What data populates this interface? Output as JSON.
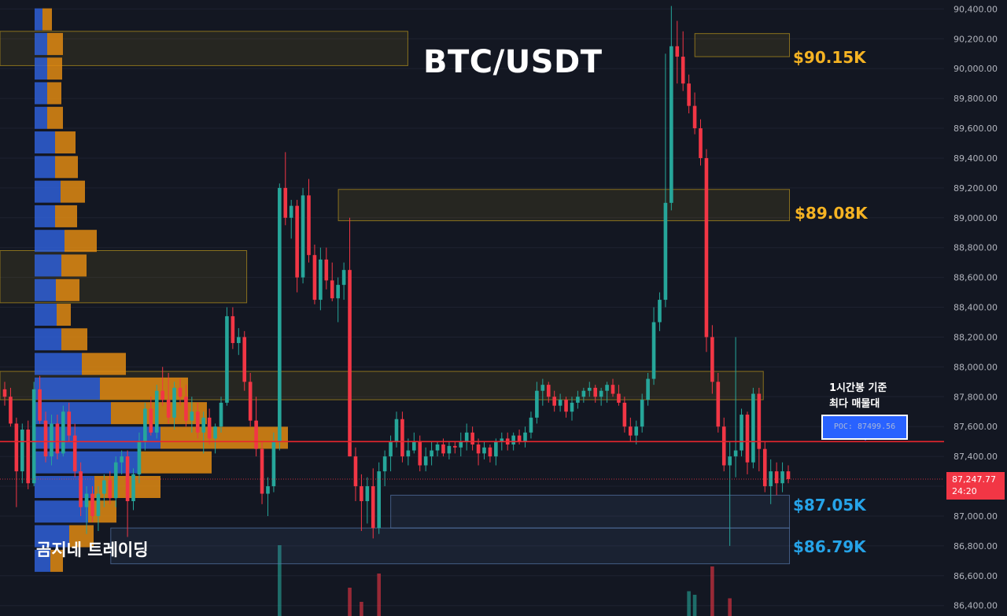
{
  "title": "BTC/USDT",
  "watermark": "곰지네 트레이딩",
  "annotation": {
    "line1": "1시간봉 기준",
    "line2": "최다 매물대"
  },
  "poc_label": "POC: 87499.56",
  "current_price": {
    "price": "87,247.77",
    "countdown": "24:20"
  },
  "levels": [
    {
      "id": "r1",
      "label": "$90.15K",
      "color": "#f5b323"
    },
    {
      "id": "r2",
      "label": "$89.08K",
      "color": "#f5b323"
    },
    {
      "id": "s1",
      "label": "$87.05K",
      "color": "#26a3e8"
    },
    {
      "id": "s2",
      "label": "$86.79K",
      "color": "#26a3e8"
    }
  ],
  "colors": {
    "up": "#26a69a",
    "down": "#f23645",
    "poc_line": "#e8262d",
    "bg": "#131722",
    "vp_blue": "#2f5fd6",
    "vp_orange": "#e08a12"
  },
  "chart_data": {
    "type": "candlestick",
    "title": "BTC/USDT",
    "y_axis": {
      "ylim": [
        86330,
        90460
      ],
      "ticks": [
        "90,400.00",
        "90,200.00",
        "90,000.00",
        "89,800.00",
        "89,600.00",
        "89,400.00",
        "89,200.00",
        "89,000.00",
        "88,800.00",
        "88,600.00",
        "88,400.00",
        "88,200.00",
        "88,000.00",
        "87,800.00",
        "87,600.00",
        "87,400.00",
        "87,200.00",
        "87,000.00",
        "86,800.00",
        "86,600.00",
        "86,400.00"
      ],
      "tick_values": [
        90400,
        90200,
        90000,
        89800,
        89600,
        89400,
        89200,
        89000,
        88800,
        88600,
        88400,
        88200,
        88000,
        87800,
        87600,
        87400,
        87200,
        87000,
        86800,
        86600,
        86400
      ]
    },
    "poc_price": 87499.56,
    "current_price": 87247.77,
    "zones": [
      {
        "name": "zone-top-left",
        "from": 0.0,
        "to": 0.405,
        "high": 90250,
        "low": 90020,
        "color": "#b8941e"
      },
      {
        "name": "zone-mid-left",
        "from": 0.0,
        "to": 0.245,
        "high": 88780,
        "low": 88430,
        "color": "#b8941e"
      },
      {
        "name": "zone-90k",
        "from": 0.69,
        "to": 0.784,
        "high": 90235,
        "low": 90080,
        "color": "#b8941e"
      },
      {
        "name": "zone-89k",
        "from": 0.336,
        "to": 0.784,
        "high": 89190,
        "low": 88980,
        "color": "#b8941e"
      },
      {
        "name": "zone-88k",
        "from": 0.0,
        "to": 0.758,
        "high": 87970,
        "low": 87780,
        "color": "#b8941e"
      },
      {
        "name": "zone-87k",
        "from": 0.388,
        "to": 0.784,
        "high": 87140,
        "low": 86920,
        "color": "#5577aa"
      },
      {
        "name": "zone-86k",
        "from": 0.11,
        "to": 0.784,
        "high": 86920,
        "low": 86680,
        "color": "#5577aa"
      }
    ],
    "volume_profile": {
      "rows": [
        {
          "price": 90330,
          "buy": 10,
          "sell": 12
        },
        {
          "price": 90165,
          "buy": 16,
          "sell": 20
        },
        {
          "price": 90000,
          "buy": 16,
          "sell": 19
        },
        {
          "price": 89835,
          "buy": 16,
          "sell": 18
        },
        {
          "price": 89670,
          "buy": 16,
          "sell": 20
        },
        {
          "price": 89505,
          "buy": 26,
          "sell": 26
        },
        {
          "price": 89340,
          "buy": 26,
          "sell": 29
        },
        {
          "price": 89175,
          "buy": 33,
          "sell": 31
        },
        {
          "price": 89010,
          "buy": 26,
          "sell": 28
        },
        {
          "price": 88845,
          "buy": 38,
          "sell": 41
        },
        {
          "price": 88680,
          "buy": 34,
          "sell": 32
        },
        {
          "price": 88515,
          "buy": 27,
          "sell": 30
        },
        {
          "price": 88350,
          "buy": 28,
          "sell": 18
        },
        {
          "price": 88185,
          "buy": 34,
          "sell": 33
        },
        {
          "price": 88020,
          "buy": 60,
          "sell": 56
        },
        {
          "price": 87855,
          "buy": 83,
          "sell": 112
        },
        {
          "price": 87690,
          "buy": 97,
          "sell": 122
        },
        {
          "price": 87525,
          "buy": 160,
          "sell": 162
        },
        {
          "price": 87360,
          "buy": 133,
          "sell": 92
        },
        {
          "price": 87195,
          "buy": 76,
          "sell": 84
        },
        {
          "price": 87030,
          "buy": 68,
          "sell": 36
        },
        {
          "price": 86865,
          "buy": 44,
          "sell": 31
        },
        {
          "price": 86700,
          "buy": 20,
          "sell": 16
        }
      ]
    },
    "candles": [
      [
        87850,
        87900,
        87740,
        87800
      ],
      [
        87800,
        87860,
        87600,
        87620
      ],
      [
        87620,
        87660,
        87060,
        87300
      ],
      [
        87300,
        87620,
        87220,
        87580
      ],
      [
        87580,
        87640,
        87180,
        87220
      ],
      [
        87220,
        87900,
        87200,
        87850
      ],
      [
        87850,
        87940,
        87620,
        87640
      ],
      [
        87640,
        87700,
        87360,
        87400
      ],
      [
        87400,
        87680,
        87340,
        87620
      ],
      [
        87620,
        87680,
        87380,
        87420
      ],
      [
        87420,
        87740,
        87400,
        87700
      ],
      [
        87700,
        87760,
        87500,
        87540
      ],
      [
        87540,
        87620,
        87260,
        87300
      ],
      [
        87300,
        87360,
        87000,
        87060
      ],
      [
        87060,
        87200,
        86880,
        87150
      ],
      [
        87150,
        87200,
        86960,
        87000
      ],
      [
        87000,
        87200,
        86900,
        87150
      ],
      [
        87150,
        87280,
        87060,
        87240
      ],
      [
        87240,
        87300,
        87080,
        87120
      ],
      [
        87120,
        87400,
        87060,
        87360
      ],
      [
        87360,
        87440,
        87280,
        87400
      ],
      [
        87400,
        87440,
        86860,
        87100
      ],
      [
        87100,
        87320,
        87040,
        87280
      ],
      [
        87280,
        87560,
        87220,
        87500
      ],
      [
        87500,
        87760,
        87440,
        87720
      ],
      [
        87720,
        87800,
        87540,
        87560
      ],
      [
        87560,
        87880,
        87520,
        87840
      ],
      [
        87840,
        88000,
        87740,
        87780
      ],
      [
        87780,
        87960,
        87620,
        87660
      ],
      [
        87660,
        87900,
        87580,
        87860
      ],
      [
        87860,
        87920,
        87740,
        87800
      ],
      [
        87800,
        87880,
        87600,
        87640
      ],
      [
        87640,
        87800,
        87560,
        87700
      ],
      [
        87700,
        87760,
        87520,
        87560
      ],
      [
        87560,
        87700,
        87420,
        87660
      ],
      [
        87660,
        87720,
        87480,
        87520
      ],
      [
        87520,
        87620,
        87420,
        87600
      ],
      [
        87600,
        87800,
        87560,
        87760
      ],
      [
        87760,
        88400,
        87740,
        88340
      ],
      [
        88340,
        88400,
        88120,
        88160
      ],
      [
        88160,
        88260,
        88080,
        88200
      ],
      [
        88200,
        88240,
        87840,
        87900
      ],
      [
        87900,
        87960,
        87600,
        87640
      ],
      [
        87640,
        87800,
        87400,
        87450
      ],
      [
        87450,
        87500,
        87080,
        87150
      ],
      [
        87150,
        87260,
        87000,
        87200
      ],
      [
        87200,
        87560,
        87160,
        87500
      ],
      [
        87500,
        89230,
        87440,
        89200
      ],
      [
        89200,
        89440,
        88950,
        89000
      ],
      [
        89000,
        89120,
        88860,
        89080
      ],
      [
        89080,
        89120,
        88500,
        88600
      ],
      [
        88600,
        89200,
        88560,
        89150
      ],
      [
        89150,
        89260,
        88700,
        88750
      ],
      [
        88750,
        88820,
        88420,
        88450
      ],
      [
        88450,
        88800,
        88380,
        88720
      ],
      [
        88720,
        88800,
        88520,
        88580
      ],
      [
        88580,
        88700,
        88440,
        88460
      ],
      [
        88460,
        88600,
        88300,
        88550
      ],
      [
        88550,
        88700,
        88450,
        88650
      ],
      [
        88650,
        89000,
        87400,
        87400
      ],
      [
        87400,
        87460,
        87100,
        87200
      ],
      [
        87200,
        87280,
        86900,
        87100
      ],
      [
        87100,
        87260,
        86950,
        87200
      ],
      [
        87200,
        87320,
        86850,
        86920
      ],
      [
        86920,
        87360,
        86880,
        87300
      ],
      [
        87300,
        87440,
        87200,
        87400
      ],
      [
        87400,
        87540,
        87300,
        87500
      ],
      [
        87500,
        87700,
        87460,
        87650
      ],
      [
        87650,
        87700,
        87360,
        87400
      ],
      [
        87400,
        87520,
        87340,
        87440
      ],
      [
        87440,
        87560,
        87420,
        87500
      ],
      [
        87500,
        87540,
        87300,
        87340
      ],
      [
        87340,
        87460,
        87300,
        87400
      ],
      [
        87400,
        87500,
        87340,
        87440
      ],
      [
        87440,
        87500,
        87400,
        87480
      ],
      [
        87480,
        87520,
        87400,
        87420
      ],
      [
        87420,
        87500,
        87380,
        87470
      ],
      [
        87470,
        87500,
        87420,
        87460
      ],
      [
        87460,
        87560,
        87400,
        87500
      ],
      [
        87500,
        87620,
        87440,
        87560
      ],
      [
        87560,
        87600,
        87440,
        87480
      ],
      [
        87480,
        87520,
        87340,
        87420
      ],
      [
        87420,
        87500,
        87380,
        87460
      ],
      [
        87460,
        87480,
        87360,
        87400
      ],
      [
        87400,
        87520,
        87340,
        87500
      ],
      [
        87500,
        87560,
        87440,
        87520
      ],
      [
        87520,
        87560,
        87440,
        87480
      ],
      [
        87480,
        87560,
        87440,
        87540
      ],
      [
        87540,
        87580,
        87480,
        87500
      ],
      [
        87500,
        87600,
        87460,
        87560
      ],
      [
        87560,
        87700,
        87520,
        87660
      ],
      [
        87660,
        87900,
        87620,
        87840
      ],
      [
        87840,
        87920,
        87740,
        87880
      ],
      [
        87880,
        87900,
        87760,
        87800
      ],
      [
        87800,
        87840,
        87700,
        87740
      ],
      [
        87740,
        87820,
        87700,
        87780
      ],
      [
        87780,
        87800,
        87660,
        87700
      ],
      [
        87700,
        87800,
        87640,
        87760
      ],
      [
        87760,
        87840,
        87720,
        87800
      ],
      [
        87800,
        87860,
        87760,
        87840
      ],
      [
        87840,
        87900,
        87800,
        87860
      ],
      [
        87860,
        87880,
        87760,
        87800
      ],
      [
        87800,
        87860,
        87740,
        87840
      ],
      [
        87840,
        87900,
        87760,
        87880
      ],
      [
        87880,
        87920,
        87800,
        87820
      ],
      [
        87820,
        87880,
        87740,
        87760
      ],
      [
        87760,
        87800,
        87560,
        87600
      ],
      [
        87600,
        87660,
        87500,
        87540
      ],
      [
        87540,
        87640,
        87480,
        87600
      ],
      [
        87600,
        87820,
        87560,
        87780
      ],
      [
        87780,
        87960,
        87740,
        87920
      ],
      [
        87920,
        88400,
        87880,
        88300
      ],
      [
        88300,
        88500,
        88240,
        88450
      ],
      [
        88450,
        90100,
        88400,
        89100
      ],
      [
        89100,
        90420,
        89050,
        90150
      ],
      [
        90150,
        90320,
        89900,
        90080
      ],
      [
        90080,
        90250,
        89850,
        89900
      ],
      [
        89900,
        89960,
        89700,
        89750
      ],
      [
        89750,
        89840,
        89560,
        89600
      ],
      [
        89600,
        89660,
        89350,
        89400
      ],
      [
        89400,
        89460,
        88100,
        88200
      ],
      [
        88200,
        88280,
        87820,
        87900
      ],
      [
        87900,
        87960,
        87560,
        87600
      ],
      [
        87600,
        87660,
        87300,
        87340
      ],
      [
        87340,
        87500,
        86800,
        87400
      ],
      [
        87400,
        88200,
        87260,
        87440
      ],
      [
        87440,
        87720,
        87400,
        87680
      ],
      [
        87680,
        87700,
        87280,
        87360
      ],
      [
        87360,
        87860,
        87320,
        87820
      ],
      [
        87820,
        87860,
        87300,
        87450
      ],
      [
        87450,
        87500,
        87160,
        87200
      ],
      [
        87200,
        87380,
        87080,
        87300
      ],
      [
        87300,
        87360,
        87140,
        87220
      ],
      [
        87220,
        87360,
        87160,
        87300
      ],
      [
        87300,
        87340,
        87220,
        87248
      ]
    ],
    "volumes": [
      {
        "i": 47,
        "v": 100,
        "up": true
      },
      {
        "i": 59,
        "v": 40,
        "up": false
      },
      {
        "i": 61,
        "v": 20,
        "up": false
      },
      {
        "i": 64,
        "v": 60,
        "up": false
      },
      {
        "i": 117,
        "v": 35,
        "up": true
      },
      {
        "i": 118,
        "v": 30,
        "up": true
      },
      {
        "i": 121,
        "v": 70,
        "up": false
      },
      {
        "i": 124,
        "v": 25,
        "up": false
      }
    ]
  }
}
